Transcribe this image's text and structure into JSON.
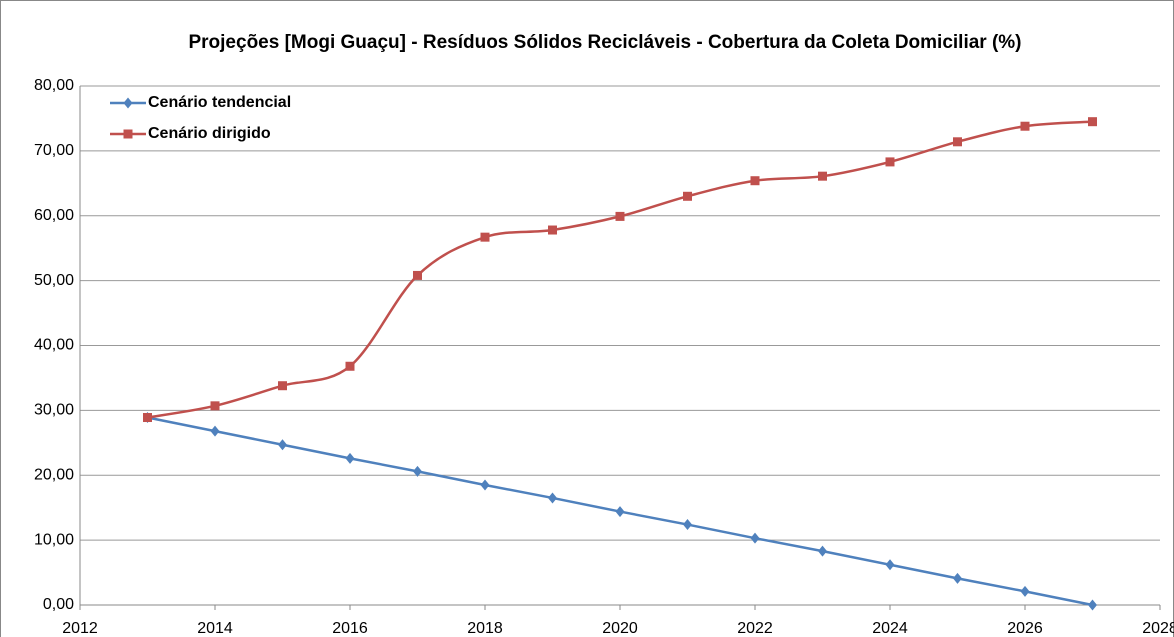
{
  "chart_data": {
    "type": "line",
    "title": "Projeções [Mogi Guaçu] - Resíduos Sólidos Recicláveis - Cobertura da Coleta Domiciliar (%)",
    "x": [
      2013,
      2014,
      2015,
      2016,
      2017,
      2018,
      2019,
      2020,
      2021,
      2022,
      2023,
      2024,
      2025,
      2026,
      2027
    ],
    "series": [
      {
        "name": "Cenário tendencial",
        "color": "#4f81bd",
        "marker": "diamond",
        "smooth": false,
        "values": [
          28.9,
          26.8,
          24.7,
          22.6,
          20.6,
          18.5,
          16.5,
          14.4,
          12.4,
          10.3,
          8.3,
          6.2,
          4.1,
          2.1,
          0
        ]
      },
      {
        "name": "Cenário dirigido",
        "color": "#c0504d",
        "marker": "square",
        "smooth": true,
        "values": [
          28.9,
          30.7,
          33.8,
          36.8,
          50.8,
          56.7,
          57.8,
          59.9,
          63.0,
          65.4,
          66.1,
          68.3,
          71.4,
          73.8,
          74.5
        ]
      }
    ],
    "xlim": [
      2012,
      2028
    ],
    "xticks": [
      2012,
      2014,
      2016,
      2018,
      2020,
      2022,
      2024,
      2026,
      2028
    ],
    "ylim": [
      0,
      80
    ],
    "yticks": [
      {
        "value": 0,
        "label": "0,00"
      },
      {
        "value": 10,
        "label": "10,00"
      },
      {
        "value": 20,
        "label": "20,00"
      },
      {
        "value": 30,
        "label": "30,00"
      },
      {
        "value": 40,
        "label": "40,00"
      },
      {
        "value": 50,
        "label": "50,00"
      },
      {
        "value": 60,
        "label": "60,00"
      },
      {
        "value": 70,
        "label": "70,00"
      },
      {
        "value": 80,
        "label": "80,00"
      }
    ],
    "grid": true,
    "legend": "upper left"
  }
}
